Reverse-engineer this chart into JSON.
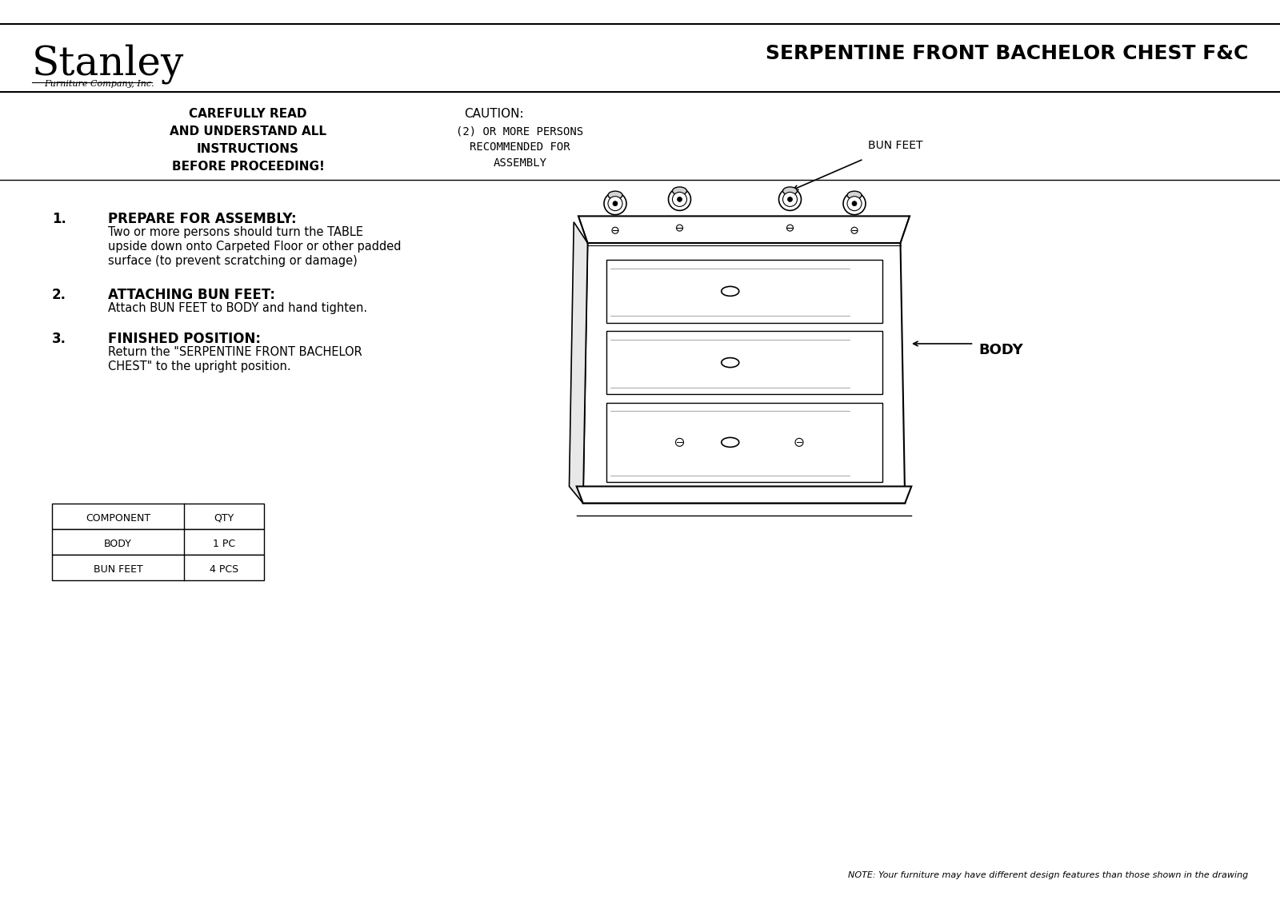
{
  "title": "SERPENTINE FRONT BACHELOR CHEST F&C",
  "stanley_text": "Stanley",
  "stanley_sub": "Furniture Company, Inc.",
  "warn_text": [
    "CAREFULLY READ",
    "AND UNDERSTAND ALL",
    "INSTRUCTIONS",
    "BEFORE PROCEEDING!"
  ],
  "caution_title": "CAUTION:",
  "caution_lines": [
    "(2) OR MORE PERSONS",
    "RECOMMENDED FOR",
    "ASSEMBLY"
  ],
  "steps": [
    {
      "num": "1.",
      "head": "PREPARE FOR ASSEMBLY:",
      "body": "Two or more persons should turn the TABLE\nupside down onto Carpeted Floor or other padded\nsurface (to prevent scratching or damage)"
    },
    {
      "num": "2.",
      "head": "ATTACHING BUN FEET:",
      "body": "Attach BUN FEET to BODY and hand tighten."
    },
    {
      "num": "3.",
      "head": "FINISHED POSITION:",
      "body": "Return the \"SERPENTINE FRONT BACHELOR\nCHEST\" to the upright position."
    }
  ],
  "table_headers": [
    "COMPONENT",
    "QTY"
  ],
  "table_rows": [
    [
      "BODY",
      "1 PC"
    ],
    [
      "BUN FEET",
      "4 PCS"
    ]
  ],
  "note_text": "NOTE: Your furniture may have different design features than those shown in the drawing",
  "label_bun_feet": "BUN FEET",
  "label_body": "BODY",
  "bg_color": "#ffffff",
  "text_color": "#000000",
  "border_color": "#000000"
}
